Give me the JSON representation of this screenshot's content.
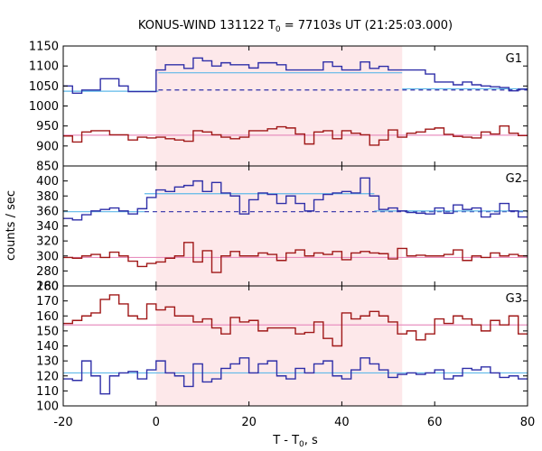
{
  "chart_data": {
    "type": "line",
    "title": "KONUS-WIND 131122 T",
    "title_sub": "0",
    "title_rest": " = 77103s UT (21:25:03.000)",
    "xlabel": "T - T",
    "xlabel_sub": "0",
    "xlabel_rest": ", s",
    "ylabel": "counts / sec",
    "xlim": [
      -20,
      80
    ],
    "x_ticks": [
      -20,
      0,
      20,
      40,
      60,
      80
    ],
    "highlight_interval": [
      0,
      53
    ],
    "highlight_color": "#fde8ea",
    "colors": {
      "blue": "#2f2fa8",
      "red": "#a01818",
      "cyan": "#5fb8e8",
      "pink": "#e890c0",
      "dashed": "#2f2fa8"
    },
    "bin_width": 2.0,
    "bin_start": -20,
    "panels": [
      {
        "label": "G1",
        "ylim": [
          850,
          1150
        ],
        "yticks": [
          850,
          900,
          950,
          1000,
          1050,
          1100,
          1150
        ],
        "series": [
          {
            "color": "blue",
            "values": [
              1050,
              1032,
              1040,
              1040,
              1068,
              1068,
              1050,
              1036,
              1036,
              1036,
              1090,
              1103,
              1103,
              1094,
              1120,
              1113,
              1100,
              1108,
              1103,
              1103,
              1095,
              1108,
              1108,
              1103,
              1090,
              1090,
              1090,
              1090,
              1110,
              1099,
              1090,
              1090,
              1110,
              1094,
              1099,
              1090,
              1090,
              1090,
              1090,
              1080,
              1060,
              1060,
              1053,
              1060,
              1053,
              1050,
              1048,
              1046,
              1038,
              1042
            ]
          },
          {
            "color": "red",
            "values": [
              925,
              910,
              935,
              938,
              938,
              928,
              928,
              915,
              922,
              920,
              922,
              918,
              915,
              912,
              938,
              935,
              928,
              922,
              918,
              922,
              938,
              938,
              943,
              948,
              945,
              930,
              905,
              935,
              938,
              918,
              938,
              932,
              928,
              902,
              915,
              940,
              922,
              932,
              935,
              942,
              945,
              929,
              924,
              922,
              920,
              935,
              930,
              950,
              932,
              926
            ]
          }
        ],
        "steps": [
          {
            "color": "cyan",
            "style": "solid",
            "segments": [
              {
                "x": [
                  -20,
                  0.5
                ],
                "y": 1037
              },
              {
                "x": [
                  0.5,
                  53
                ],
                "y": 1083
              },
              {
                "x": [
                  53,
                  80
                ],
                "y": 1043
              }
            ]
          },
          {
            "color": "dashed",
            "style": "dashed",
            "segments": [
              {
                "x": [
                  0.5,
                  80
                ],
                "y": 1040
              }
            ]
          },
          {
            "color": "pink",
            "style": "solid",
            "segments": [
              {
                "x": [
                  -20,
                  80
                ],
                "y": 927
              }
            ]
          }
        ]
      },
      {
        "label": "G2",
        "ylim": [
          260,
          420
        ],
        "yticks": [
          260,
          280,
          300,
          320,
          340,
          360,
          380,
          400
        ],
        "series": [
          {
            "color": "blue",
            "values": [
              350,
              348,
              355,
              360,
              362,
              364,
              360,
              356,
              363,
              378,
              388,
              386,
              392,
              394,
              400,
              386,
              398,
              384,
              380,
              356,
              375,
              384,
              382,
              370,
              380,
              370,
              360,
              375,
              382,
              384,
              386,
              384,
              404,
              380,
              362,
              364,
              360,
              358,
              357,
              356,
              364,
              357,
              368,
              362,
              364,
              352,
              356,
              370,
              360,
              352
            ]
          },
          {
            "color": "red",
            "values": [
              298,
              297,
              300,
              302,
              298,
              305,
              300,
              293,
              286,
              290,
              292,
              297,
              300,
              318,
              292,
              307,
              278,
              300,
              306,
              300,
              300,
              304,
              302,
              294,
              304,
              308,
              300,
              304,
              302,
              306,
              295,
              304,
              306,
              304,
              303,
              296,
              310,
              300,
              301,
              300,
              300,
              302,
              308,
              294,
              300,
              298,
              304,
              300,
              302,
              300
            ]
          }
        ],
        "steps": [
          {
            "color": "cyan",
            "style": "solid",
            "segments": [
              {
                "x": [
                  -20,
                  -2.5
                ],
                "y": 359
              },
              {
                "x": [
                  -2.5,
                  47
                ],
                "y": 383
              },
              {
                "x": [
                  47,
                  80
                ],
                "y": 360
              }
            ]
          },
          {
            "color": "dashed",
            "style": "dashed",
            "segments": [
              {
                "x": [
                  -2.5,
                  80
                ],
                "y": 359
              }
            ]
          },
          {
            "color": "pink",
            "style": "solid",
            "segments": [
              {
                "x": [
                  -20,
                  80
                ],
                "y": 298
              }
            ]
          }
        ]
      },
      {
        "label": "G3",
        "ylim": [
          100,
          280
        ],
        "yticks": [
          100,
          110,
          120,
          130,
          140,
          150,
          160,
          170,
          180,
          190,
          200,
          210,
          220,
          230,
          240,
          250,
          260,
          270,
          280
        ],
        "ytick_labels_shown": [
          100,
          110,
          120,
          130,
          140,
          150,
          160,
          170,
          180
        ],
        "series": [
          {
            "color": "blue",
            "values": [
              118,
              117,
              130,
              120,
              108,
              120,
              122,
              123,
              118,
              124,
              130,
              122,
              120,
              113,
              128,
              116,
              118,
              125,
              128,
              132,
              122,
              128,
              130,
              120,
              118,
              125,
              122,
              128,
              130,
              120,
              118,
              124,
              132,
              128,
              124,
              119,
              121,
              122,
              121,
              122,
              124,
              118,
              120,
              125,
              124,
              126,
              122,
              119,
              120,
              118
            ]
          },
          {
            "color": "red",
            "values": [
              155,
              157,
              160,
              162,
              171,
              174,
              168,
              160,
              158,
              168,
              164,
              166,
              160,
              160,
              156,
              158,
              152,
              148,
              159,
              156,
              157,
              150,
              152,
              152,
              152,
              148,
              149,
              156,
              145,
              140,
              162,
              158,
              160,
              163,
              160,
              156,
              148,
              150,
              144,
              148,
              158,
              155,
              160,
              158,
              154,
              150,
              157,
              154,
              160,
              148
            ]
          }
        ],
        "steps": [
          {
            "color": "cyan",
            "style": "solid",
            "segments": [
              {
                "x": [
                  -20,
                  80
                ],
                "y": 122
              }
            ]
          },
          {
            "color": "pink",
            "style": "solid",
            "segments": [
              {
                "x": [
                  -20,
                  80
                ],
                "y": 154
              }
            ]
          }
        ]
      }
    ]
  }
}
